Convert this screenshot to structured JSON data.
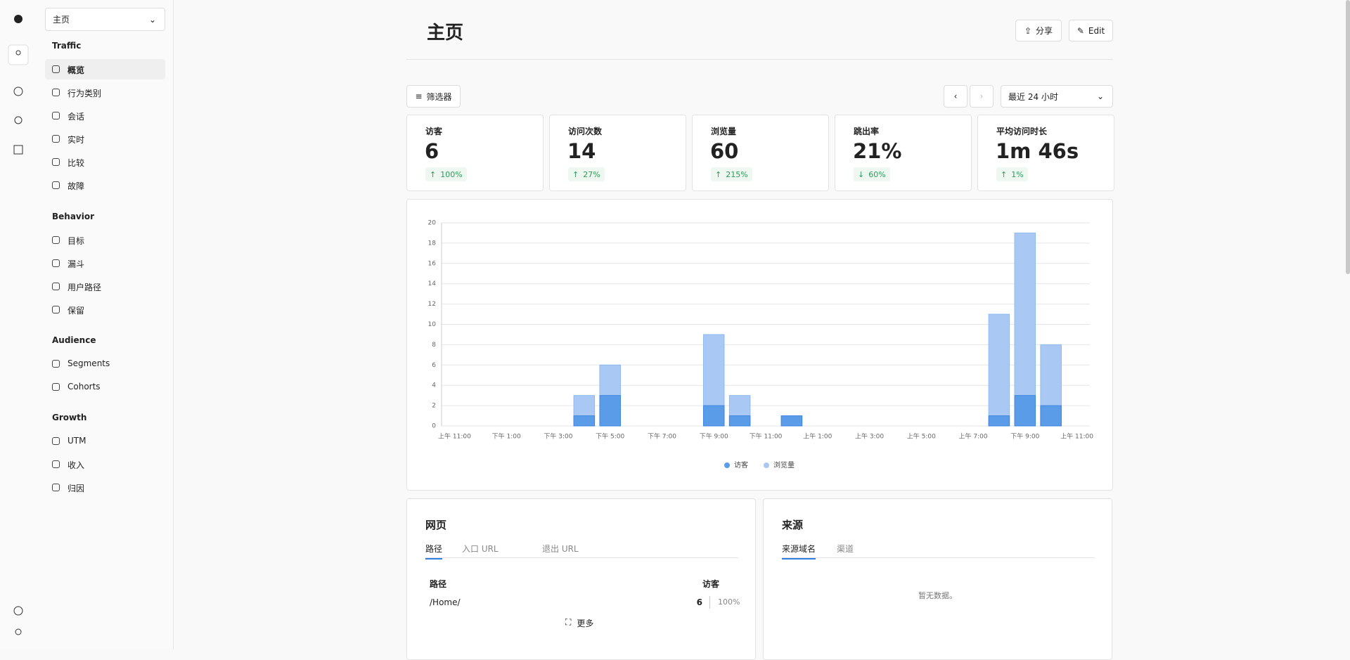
{
  "sidebar": {
    "workspace": "主页",
    "active_item": [
      0,
      0
    ],
    "sections": [
      {
        "title": "Traffic",
        "items": [
          "概览",
          "行为类别",
          "会话",
          "实时",
          "比较",
          "故障"
        ]
      },
      {
        "title": "Behavior",
        "items": [
          "目标",
          "漏斗",
          "用户路径",
          "保留"
        ]
      },
      {
        "title": "Audience",
        "items": [
          "Segments",
          "Cohorts"
        ]
      },
      {
        "title": "Growth",
        "items": [
          "UTM",
          "收入",
          "归因"
        ]
      }
    ]
  },
  "header": {
    "title": "主页",
    "share": "分享",
    "edit": "Edit"
  },
  "toolbar": {
    "filter": "筛选器",
    "range": "最近 24 小时"
  },
  "stats": [
    {
      "label": "访客",
      "value": "6",
      "change": "100%",
      "direction": "up"
    },
    {
      "label": "访问次数",
      "value": "14",
      "change": "27%",
      "direction": "up"
    },
    {
      "label": "浏览量",
      "value": "60",
      "change": "215%",
      "direction": "up"
    },
    {
      "label": "跳出率",
      "value": "21%",
      "change": "60%",
      "direction": "down"
    },
    {
      "label": "平均访问时长",
      "value": "1m 46s",
      "change": "1%",
      "direction": "up"
    }
  ],
  "chart": {
    "type": "bar",
    "overlap": true,
    "categories": [
      "上午 11:00",
      null,
      "下午 1:00",
      null,
      "下午 3:00",
      null,
      "下午 5:00",
      null,
      "下午 7:00",
      null,
      "下午 9:00",
      null,
      "下午 11:00",
      null,
      "上午 1:00",
      null,
      "上午 3:00",
      null,
      "上午 5:00",
      null,
      "上午 7:00",
      null,
      "下午 9:00",
      null,
      "上午 11:00"
    ],
    "series": [
      {
        "name": "访客",
        "color": "#5b9ce9",
        "values": [
          0,
          0,
          0,
          0,
          0,
          1,
          3,
          0,
          0,
          0,
          2,
          1,
          0,
          1,
          0,
          0,
          0,
          0,
          0,
          0,
          0,
          1,
          3,
          2,
          0
        ]
      },
      {
        "name": "浏览量",
        "color": "#a9c9f4",
        "values": [
          0,
          0,
          0,
          0,
          0,
          3,
          6,
          0,
          0,
          0,
          9,
          3,
          0,
          1,
          0,
          0,
          0,
          0,
          0,
          0,
          0,
          11,
          19,
          8,
          0
        ]
      }
    ],
    "ylim": [
      0,
      20
    ],
    "yticks": [
      0,
      2,
      4,
      6,
      8,
      10,
      12,
      14,
      16,
      18,
      20
    ],
    "grid": true
  },
  "panels": [
    {
      "title": "网页",
      "tabs": [
        "路径",
        "入口 URL",
        "退出 URL"
      ],
      "active_tab": 0,
      "columns": [
        "路径",
        "访客"
      ],
      "rows": [
        [
          "/Home/",
          "6",
          "100%"
        ]
      ],
      "more": "更多"
    },
    {
      "title": "来源",
      "tabs": [
        "来源域名",
        "渠道"
      ],
      "active_tab": 0,
      "empty": "暂无数据。"
    }
  ]
}
